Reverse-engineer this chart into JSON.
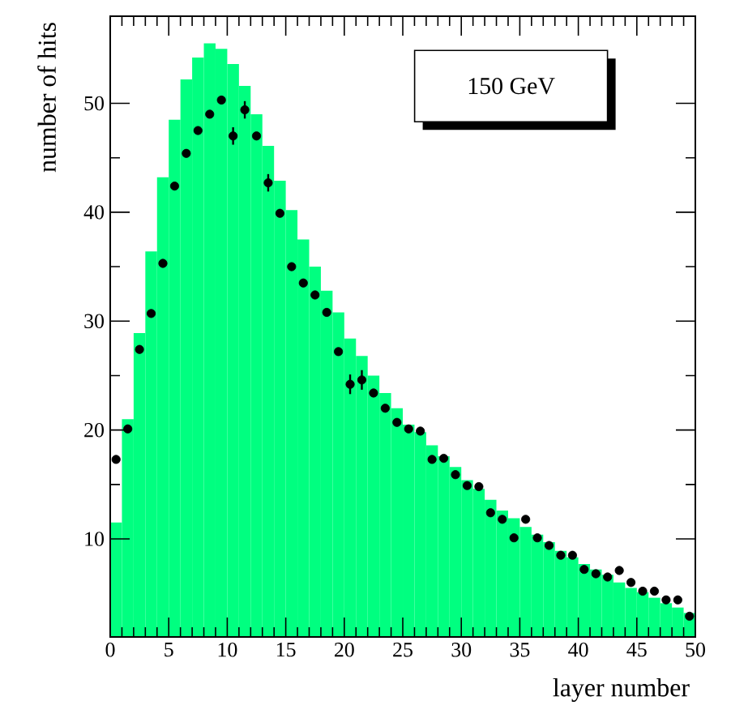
{
  "chart_data": {
    "type": "histogram",
    "xlabel": "layer number",
    "ylabel": "number of hits",
    "annotations": [
      "150 GeV"
    ],
    "xlim": [
      0,
      50
    ],
    "ylim": [
      1,
      58
    ],
    "xticks": [
      0,
      5,
      10,
      15,
      20,
      25,
      30,
      35,
      40,
      45,
      50
    ],
    "yticks": [
      10,
      20,
      30,
      40,
      50
    ],
    "grid": false,
    "series": [
      {
        "color": "#00ff80",
        "bins": [
          0,
          1,
          2,
          3,
          4,
          5,
          6,
          7,
          8,
          9,
          10,
          11,
          12,
          13,
          14,
          15,
          16,
          17,
          18,
          19,
          20,
          21,
          22,
          23,
          24,
          25,
          26,
          27,
          28,
          29,
          30,
          31,
          32,
          33,
          34,
          35,
          36,
          37,
          38,
          39,
          40,
          41,
          42,
          43,
          44,
          45,
          46,
          47,
          48,
          49,
          50
        ],
        "values": [
          11.5,
          21,
          28.9,
          36.4,
          43.2,
          48.5,
          52.2,
          54.2,
          55.5,
          55.0,
          53.6,
          51.6,
          49.0,
          46.1,
          42.9,
          40.2,
          37.5,
          35.0,
          32.8,
          30.8,
          28.4,
          26.8,
          25.0,
          23.4,
          22.0,
          20.5,
          19.8,
          18.6,
          17.6,
          16.6,
          15.4,
          14.6,
          13.6,
          12.6,
          11.9,
          11.1,
          10.4,
          9.7,
          8.9,
          8.3,
          7.7,
          7.2,
          6.7,
          6.0,
          5.5,
          5.1,
          4.6,
          4.1,
          3.7,
          3.2
        ]
      },
      {
        "type": "scatter",
        "color": "#000000",
        "x": [
          0.5,
          1.5,
          2.5,
          3.5,
          4.5,
          5.5,
          6.5,
          7.5,
          8.5,
          9.5,
          10.5,
          11.5,
          12.5,
          13.5,
          14.5,
          15.5,
          16.5,
          17.5,
          18.5,
          19.5,
          20.5,
          21.5,
          22.5,
          23.5,
          24.5,
          25.5,
          26.5,
          27.5,
          28.5,
          29.5,
          30.5,
          31.5,
          32.5,
          33.5,
          34.5,
          35.5,
          36.5,
          37.5,
          38.5,
          39.5,
          40.5,
          41.5,
          42.5,
          43.5,
          44.5,
          45.5,
          46.5,
          47.5,
          48.5,
          49.5
        ],
        "values": [
          17.3,
          20.1,
          27.4,
          30.7,
          35.3,
          42.4,
          45.4,
          47.5,
          49.0,
          50.3,
          47.0,
          49.4,
          47.0,
          42.7,
          39.9,
          35.0,
          33.5,
          32.4,
          30.8,
          27.2,
          24.2,
          24.6,
          23.4,
          22.0,
          20.7,
          20.1,
          19.9,
          17.3,
          17.4,
          15.9,
          14.9,
          14.8,
          12.4,
          11.8,
          10.1,
          11.8,
          10.1,
          9.4,
          8.5,
          8.5,
          7.2,
          6.8,
          6.5,
          7.1,
          6.0,
          5.2,
          5.2,
          4.4,
          4.4,
          2.9
        ],
        "errors": [
          null,
          null,
          null,
          null,
          null,
          null,
          null,
          null,
          null,
          null,
          0.8,
          0.8,
          null,
          0.8,
          null,
          null,
          null,
          null,
          null,
          null,
          0.9,
          0.9,
          null,
          null,
          null,
          null,
          null,
          null,
          null,
          null,
          null,
          null,
          null,
          null,
          null,
          null,
          null,
          null,
          null,
          null,
          null,
          null,
          null,
          null,
          null,
          null,
          null,
          null,
          null,
          null
        ]
      }
    ]
  }
}
